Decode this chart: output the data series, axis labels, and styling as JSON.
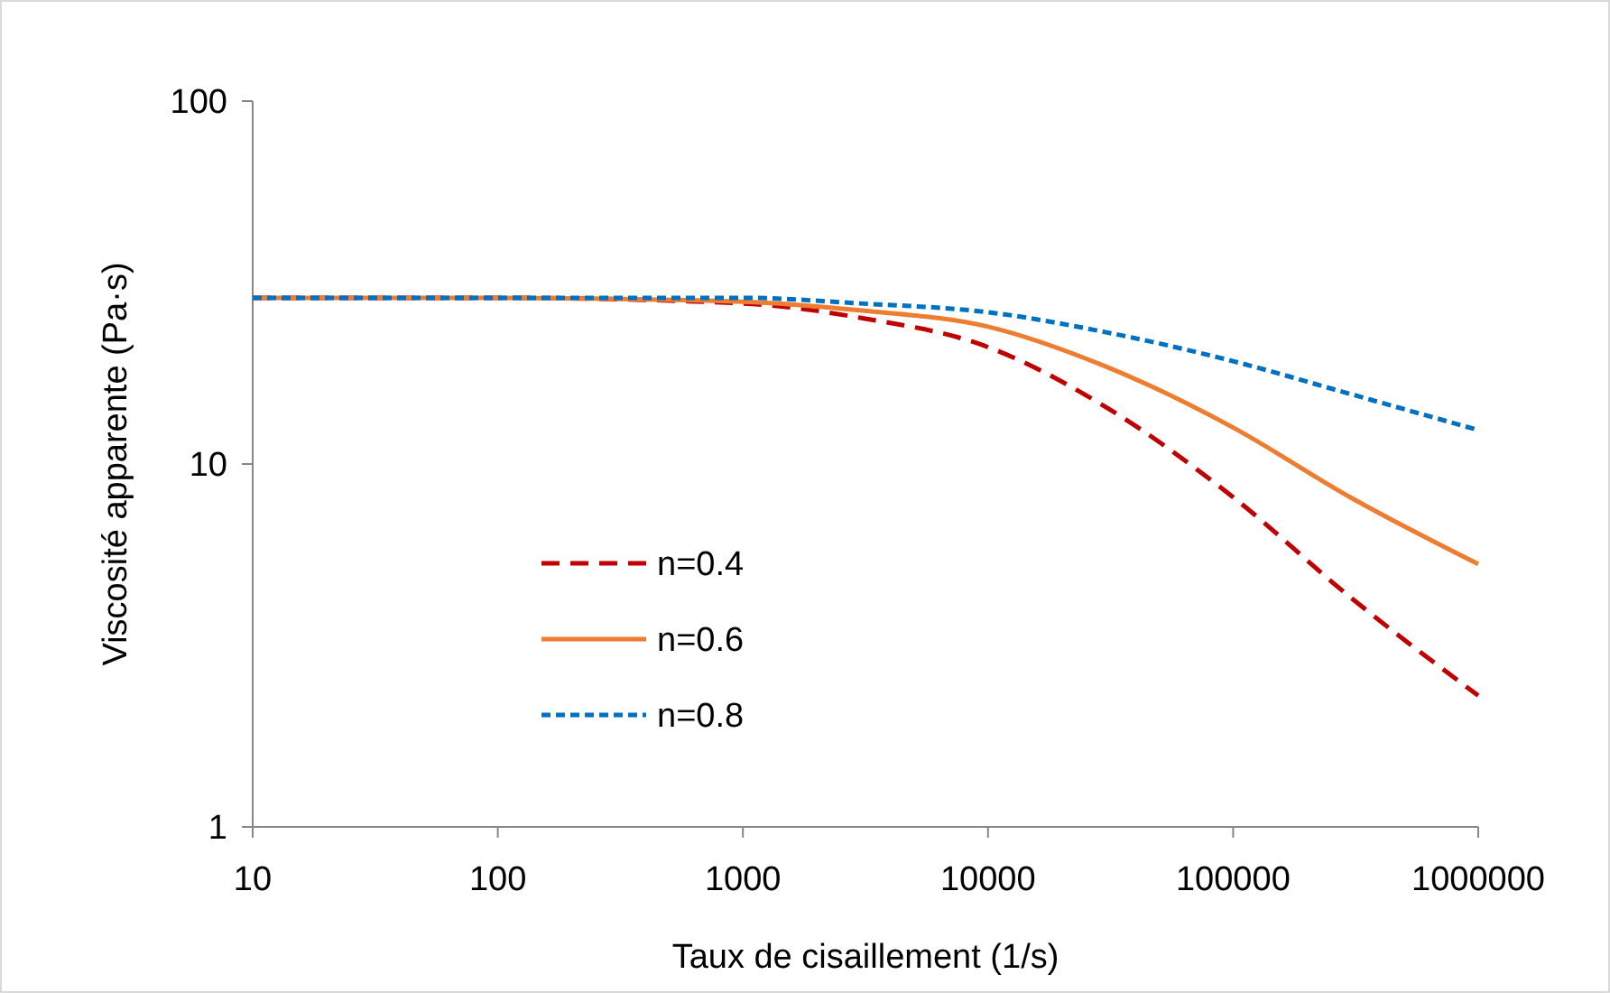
{
  "chart_data": {
    "type": "line",
    "xlabel": "Taux de cisaillement (1/s)",
    "ylabel": "Viscosité apparente (Pa·s)",
    "log": "xy",
    "x": [
      10,
      100,
      1000,
      3000,
      10000,
      30000,
      100000,
      300000,
      1000000
    ],
    "xlim": [
      10,
      1000000
    ],
    "xticks": [
      10,
      100,
      1000,
      10000,
      100000,
      1000000
    ],
    "ylim": [
      1,
      100
    ],
    "yticks": [
      1,
      10,
      100
    ],
    "grid": false,
    "legend": "left",
    "series": [
      {
        "name": "n=0.4",
        "color": "#c00000",
        "line_style": "dashed",
        "values": [
          28.7,
          28.7,
          27.7,
          25.3,
          21.0,
          14.4,
          8.1,
          4.3,
          2.3
        ]
      },
      {
        "name": "n=0.6",
        "color": "#ed7d31",
        "line_style": "solid",
        "values": [
          28.7,
          28.7,
          28.0,
          26.5,
          23.9,
          18.6,
          12.6,
          8.1,
          5.3
        ]
      },
      {
        "name": "n=0.8",
        "color": "#0070c0",
        "line_style": "dotted",
        "values": [
          28.7,
          28.7,
          28.7,
          27.7,
          26.2,
          23.1,
          19.2,
          15.6,
          12.4
        ]
      }
    ]
  }
}
